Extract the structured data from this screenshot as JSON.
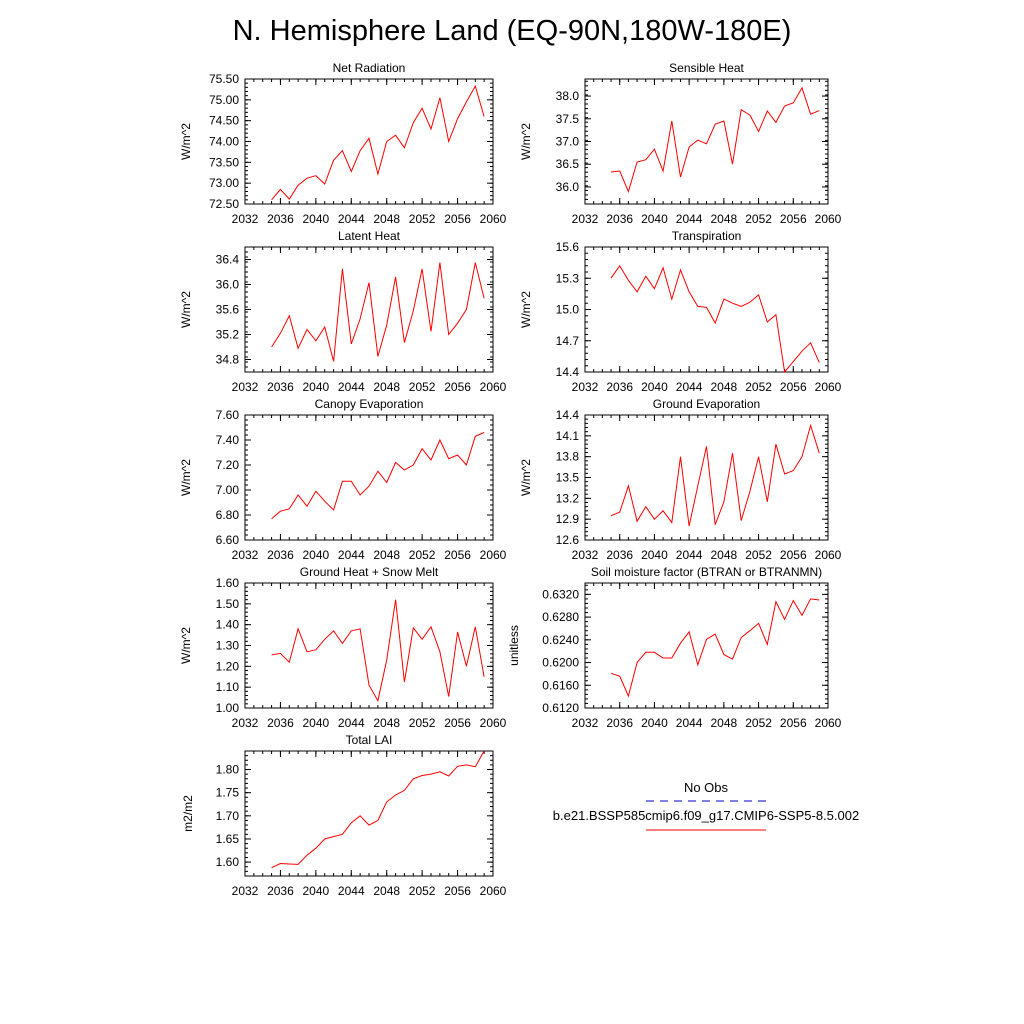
{
  "title": "N. Hemisphere Land (EQ-90N,180W-180E)",
  "colors": {
    "model": "#ff0000",
    "obs": "#0000cc"
  },
  "legend": {
    "obs_label": "No Obs",
    "model_label": "b.e21.BSSP585cmip6.f09_g17.CMIP6-SSP5-8.5.002"
  },
  "chart_data": [
    {
      "type": "line",
      "title": "Net Radiation",
      "ylabel": "W/m^2",
      "xlim": [
        2032,
        2060
      ],
      "ylim": [
        72.5,
        75.5
      ],
      "xticks": [
        2032,
        2036,
        2040,
        2044,
        2048,
        2052,
        2056,
        2060
      ],
      "yticks": [
        "72.50",
        "73.00",
        "73.50",
        "74.00",
        "74.50",
        "75.00",
        "75.50"
      ],
      "x": [
        2035,
        2036,
        2037,
        2038,
        2039,
        2040,
        2041,
        2042,
        2043,
        2044,
        2045,
        2046,
        2047,
        2048,
        2049,
        2050,
        2051,
        2052,
        2053,
        2054,
        2055,
        2056,
        2057,
        2058,
        2059
      ],
      "series": [
        {
          "values": [
            72.6,
            72.85,
            72.62,
            72.95,
            73.12,
            73.18,
            72.98,
            73.55,
            73.78,
            73.28,
            73.78,
            74.08,
            73.22,
            74.0,
            74.15,
            73.85,
            74.45,
            74.8,
            74.3,
            75.05,
            74.0,
            74.55,
            74.95,
            75.33,
            74.6
          ]
        }
      ]
    },
    {
      "type": "line",
      "title": "Sensible Heat",
      "ylabel": "W/m^2",
      "xlim": [
        2032,
        2060
      ],
      "ylim": [
        35.625,
        38.375
      ],
      "xticks": [
        2032,
        2036,
        2040,
        2044,
        2048,
        2052,
        2056,
        2060
      ],
      "yticks": [
        "36.0",
        "36.5",
        "37.0",
        "37.5",
        "38.0"
      ],
      "x": [
        2035,
        2036,
        2037,
        2038,
        2039,
        2040,
        2041,
        2042,
        2043,
        2044,
        2045,
        2046,
        2047,
        2048,
        2049,
        2050,
        2051,
        2052,
        2053,
        2054,
        2055,
        2056,
        2057,
        2058,
        2059
      ],
      "series": [
        {
          "values": [
            36.33,
            36.35,
            35.9,
            36.55,
            36.6,
            36.83,
            36.35,
            37.45,
            36.22,
            36.88,
            37.03,
            36.95,
            37.38,
            37.45,
            36.5,
            37.7,
            37.58,
            37.22,
            37.67,
            37.42,
            37.78,
            37.85,
            38.18,
            37.6,
            37.68
          ]
        }
      ]
    },
    {
      "type": "line",
      "title": "Latent Heat",
      "ylabel": "W/m^2",
      "xlim": [
        2032,
        2060
      ],
      "ylim": [
        34.6,
        36.6
      ],
      "xticks": [
        2032,
        2036,
        2040,
        2044,
        2048,
        2052,
        2056,
        2060
      ],
      "yticks": [
        "34.8",
        "35.2",
        "35.6",
        "36.0",
        "36.4"
      ],
      "x": [
        2035,
        2036,
        2037,
        2038,
        2039,
        2040,
        2041,
        2042,
        2043,
        2044,
        2045,
        2046,
        2047,
        2048,
        2049,
        2050,
        2051,
        2052,
        2053,
        2054,
        2055,
        2056,
        2057,
        2058,
        2059
      ],
      "series": [
        {
          "values": [
            35.0,
            35.22,
            35.5,
            34.98,
            35.28,
            35.1,
            35.32,
            34.77,
            36.25,
            35.05,
            35.45,
            36.03,
            34.85,
            35.35,
            36.12,
            35.07,
            35.58,
            36.25,
            35.25,
            36.35,
            35.2,
            35.38,
            35.6,
            36.35,
            35.78
          ]
        }
      ]
    },
    {
      "type": "line",
      "title": "Transpiration",
      "ylabel": "W/m^2",
      "xlim": [
        2032,
        2060
      ],
      "ylim": [
        14.4,
        15.6
      ],
      "xticks": [
        2032,
        2036,
        2040,
        2044,
        2048,
        2052,
        2056,
        2060
      ],
      "yticks": [
        "14.4",
        "14.7",
        "15.0",
        "15.3",
        "15.6"
      ],
      "x": [
        2035,
        2036,
        2037,
        2038,
        2039,
        2040,
        2041,
        2042,
        2043,
        2044,
        2045,
        2046,
        2047,
        2048,
        2049,
        2050,
        2051,
        2052,
        2053,
        2054,
        2055,
        2056,
        2057,
        2058,
        2059
      ],
      "series": [
        {
          "values": [
            15.3,
            15.42,
            15.28,
            15.17,
            15.32,
            15.2,
            15.4,
            15.1,
            15.38,
            15.17,
            15.03,
            15.02,
            14.87,
            15.1,
            15.06,
            15.03,
            15.07,
            15.14,
            14.88,
            14.95,
            14.4,
            14.5,
            14.6,
            14.68,
            14.49
          ]
        }
      ]
    },
    {
      "type": "line",
      "title": "Canopy Evaporation",
      "ylabel": "W/m^2",
      "xlim": [
        2032,
        2060
      ],
      "ylim": [
        6.6,
        7.6
      ],
      "xticks": [
        2032,
        2036,
        2040,
        2044,
        2048,
        2052,
        2056,
        2060
      ],
      "yticks": [
        "6.60",
        "6.80",
        "7.00",
        "7.20",
        "7.40",
        "7.60"
      ],
      "x": [
        2035,
        2036,
        2037,
        2038,
        2039,
        2040,
        2041,
        2042,
        2043,
        2044,
        2045,
        2046,
        2047,
        2048,
        2049,
        2050,
        2051,
        2052,
        2053,
        2054,
        2055,
        2056,
        2057,
        2058,
        2059
      ],
      "series": [
        {
          "values": [
            6.77,
            6.83,
            6.85,
            6.96,
            6.87,
            6.99,
            6.91,
            6.84,
            7.07,
            7.07,
            6.96,
            7.03,
            7.15,
            7.06,
            7.22,
            7.16,
            7.2,
            7.33,
            7.24,
            7.4,
            7.25,
            7.28,
            7.2,
            7.43,
            7.46
          ]
        }
      ]
    },
    {
      "type": "line",
      "title": "Ground Evaporation",
      "ylabel": "W/m^2",
      "xlim": [
        2032,
        2060
      ],
      "ylim": [
        12.6,
        14.4
      ],
      "xticks": [
        2032,
        2036,
        2040,
        2044,
        2048,
        2052,
        2056,
        2060
      ],
      "yticks": [
        "12.6",
        "12.9",
        "13.2",
        "13.5",
        "13.8",
        "14.1",
        "14.4"
      ],
      "x": [
        2035,
        2036,
        2037,
        2038,
        2039,
        2040,
        2041,
        2042,
        2043,
        2044,
        2045,
        2046,
        2047,
        2048,
        2049,
        2050,
        2051,
        2052,
        2053,
        2054,
        2055,
        2056,
        2057,
        2058,
        2059
      ],
      "series": [
        {
          "values": [
            12.95,
            13.0,
            13.38,
            12.87,
            13.08,
            12.9,
            13.02,
            12.85,
            13.8,
            12.8,
            13.38,
            13.95,
            12.82,
            13.15,
            13.85,
            12.88,
            13.3,
            13.8,
            13.15,
            13.98,
            13.55,
            13.6,
            13.8,
            14.25,
            13.85
          ]
        }
      ]
    },
    {
      "type": "line",
      "title": "Ground Heat + Snow Melt",
      "ylabel": "W/m^2",
      "xlim": [
        2032,
        2060
      ],
      "ylim": [
        1.0,
        1.6
      ],
      "xticks": [
        2032,
        2036,
        2040,
        2044,
        2048,
        2052,
        2056,
        2060
      ],
      "yticks": [
        "1.00",
        "1.10",
        "1.20",
        "1.30",
        "1.40",
        "1.50",
        "1.60"
      ],
      "x": [
        2035,
        2036,
        2037,
        2038,
        2039,
        2040,
        2041,
        2042,
        2043,
        2044,
        2045,
        2046,
        2047,
        2048,
        2049,
        2050,
        2051,
        2052,
        2053,
        2054,
        2055,
        2056,
        2057,
        2058,
        2059
      ],
      "series": [
        {
          "values": [
            1.255,
            1.262,
            1.22,
            1.38,
            1.27,
            1.28,
            1.33,
            1.37,
            1.31,
            1.37,
            1.38,
            1.11,
            1.035,
            1.23,
            1.52,
            1.125,
            1.385,
            1.33,
            1.39,
            1.27,
            1.055,
            1.365,
            1.2,
            1.39,
            1.15
          ]
        }
      ]
    },
    {
      "type": "line",
      "title": "Soil moisture factor (BTRAN or BTRANMN)",
      "ylabel": "unitless",
      "xlim": [
        2032,
        2060
      ],
      "ylim": [
        0.612,
        0.634
      ],
      "xticks": [
        2032,
        2036,
        2040,
        2044,
        2048,
        2052,
        2056,
        2060
      ],
      "yticks": [
        "0.6120",
        "0.6160",
        "0.6200",
        "0.6240",
        "0.6280",
        "0.6320"
      ],
      "x": [
        2035,
        2036,
        2037,
        2038,
        2039,
        2040,
        2041,
        2042,
        2043,
        2044,
        2045,
        2046,
        2047,
        2048,
        2049,
        2050,
        2051,
        2052,
        2053,
        2054,
        2055,
        2056,
        2057,
        2058,
        2059
      ],
      "series": [
        {
          "values": [
            0.6181,
            0.6176,
            0.6141,
            0.62,
            0.6218,
            0.6218,
            0.6208,
            0.6208,
            0.6234,
            0.6254,
            0.6196,
            0.6241,
            0.625,
            0.6214,
            0.6206,
            0.6244,
            0.6256,
            0.6269,
            0.6232,
            0.6307,
            0.6276,
            0.6309,
            0.6283,
            0.6312,
            0.631
          ]
        }
      ]
    },
    {
      "type": "line",
      "title": "Total LAI",
      "ylabel": "m2/m2",
      "xlim": [
        2032,
        2060
      ],
      "ylim": [
        1.57,
        1.84
      ],
      "xticks": [
        2032,
        2036,
        2040,
        2044,
        2048,
        2052,
        2056,
        2060
      ],
      "yticks": [
        "1.60",
        "1.65",
        "1.70",
        "1.75",
        "1.80"
      ],
      "x": [
        2035,
        2036,
        2037,
        2038,
        2039,
        2040,
        2041,
        2042,
        2043,
        2044,
        2045,
        2046,
        2047,
        2048,
        2049,
        2050,
        2051,
        2052,
        2053,
        2054,
        2055,
        2056,
        2057,
        2058,
        2059
      ],
      "series": [
        {
          "values": [
            1.588,
            1.597,
            1.596,
            1.595,
            1.615,
            1.63,
            1.65,
            1.655,
            1.66,
            1.685,
            1.7,
            1.68,
            1.69,
            1.73,
            1.745,
            1.755,
            1.78,
            1.787,
            1.79,
            1.795,
            1.786,
            1.807,
            1.81,
            1.806,
            1.84
          ]
        }
      ]
    }
  ]
}
